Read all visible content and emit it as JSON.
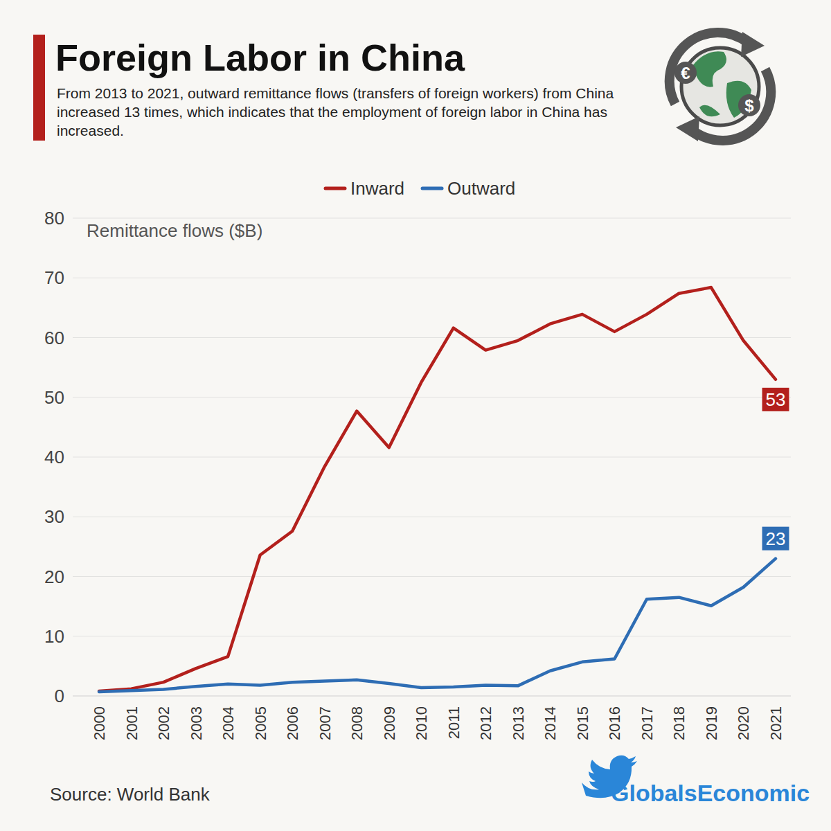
{
  "chart_data": {
    "type": "line",
    "title": "Foreign Labor in China",
    "subtitle": "From 2013 to 2021, outward remittance flows (transfers of foreign workers) from China increased 13 times, which indicates that the employment of foreign labor in China has increased.",
    "y_label": "Remittance flows ($B)",
    "x": [
      2000,
      2001,
      2002,
      2003,
      2004,
      2005,
      2006,
      2007,
      2008,
      2009,
      2010,
      2011,
      2012,
      2013,
      2014,
      2015,
      2016,
      2017,
      2018,
      2019,
      2020,
      2021
    ],
    "series": [
      {
        "name": "Inward",
        "color": "#b3201c",
        "values": [
          0.8,
          1.2,
          2.3,
          4.6,
          6.6,
          23.6,
          27.6,
          38.4,
          47.7,
          41.6,
          52.5,
          61.6,
          57.9,
          59.5,
          62.3,
          63.9,
          61.0,
          63.9,
          67.4,
          68.4,
          59.5,
          53
        ]
      },
      {
        "name": "Outward",
        "color": "#2e6db4",
        "values": [
          0.7,
          0.9,
          1.1,
          1.6,
          2.0,
          1.8,
          2.3,
          2.5,
          2.7,
          2.1,
          1.4,
          1.5,
          1.8,
          1.7,
          4.2,
          5.7,
          6.2,
          16.2,
          16.5,
          15.1,
          18.2,
          23
        ]
      }
    ],
    "annotations": [
      {
        "text": "53"
      },
      {
        "text": "23"
      }
    ],
    "xlim": [
      2000,
      2021
    ],
    "xticks": [
      2000,
      2001,
      2002,
      2003,
      2004,
      2005,
      2006,
      2007,
      2008,
      2009,
      2010,
      2011,
      2012,
      2013,
      2014,
      2015,
      2016,
      2017,
      2018,
      2019,
      2020,
      2021
    ],
    "ylim": [
      0,
      80
    ],
    "yticks": [
      0,
      10,
      20,
      30,
      40,
      50,
      60,
      70,
      80
    ],
    "grid": true,
    "legend": "top",
    "source": "Source: World Bank",
    "credit": "GlobalsEconomic",
    "logo_text": [
      "€",
      "$"
    ]
  }
}
